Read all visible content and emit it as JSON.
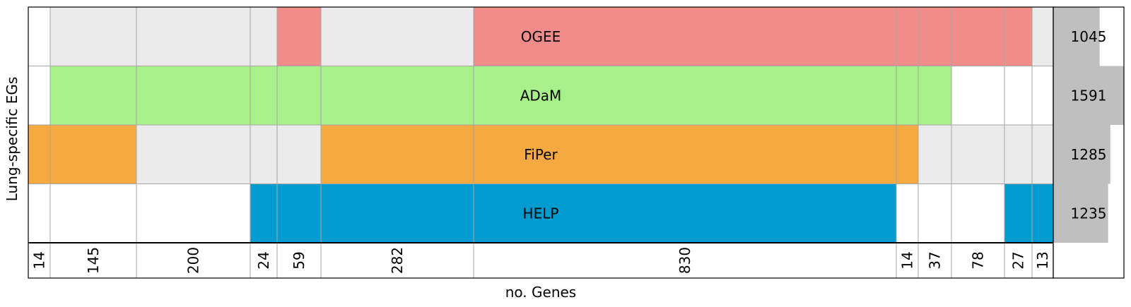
{
  "chart_data": {
    "type": "heatmap",
    "ylabel": "Lung-specific EGs",
    "xlabel": "no. Genes",
    "rows": [
      {
        "name": "OGEE",
        "color": "#f08c89",
        "total": 1045
      },
      {
        "name": "ADaM",
        "color": "#a8f08a",
        "total": 1591
      },
      {
        "name": "FiPer",
        "color": "#f4aa40",
        "total": 1285
      },
      {
        "name": "HELP",
        "color": "#019ccf",
        "total": 1235
      }
    ],
    "columns": [
      {
        "count": 14,
        "members": [
          "ADaM_absent",
          "FiPer"
        ]
      },
      {
        "count": 145,
        "members": [
          "ADaM",
          "FiPer"
        ]
      },
      {
        "count": 200,
        "members": [
          "ADaM"
        ]
      },
      {
        "count": 24,
        "members": [
          "ADaM",
          "HELP"
        ]
      },
      {
        "count": 59,
        "members": [
          "OGEE",
          "ADaM",
          "HELP"
        ]
      },
      {
        "count": 282,
        "members": [
          "ADaM",
          "FiPer",
          "HELP"
        ]
      },
      {
        "count": 830,
        "members": [
          "OGEE",
          "ADaM",
          "FiPer",
          "HELP"
        ]
      },
      {
        "count": 14,
        "members": [
          "OGEE",
          "ADaM",
          "FiPer"
        ]
      },
      {
        "count": 37,
        "members": [
          "OGEE",
          "ADaM"
        ]
      },
      {
        "count": 78,
        "members": [
          "OGEE"
        ]
      },
      {
        "count": 27,
        "members": [
          "OGEE",
          "HELP"
        ]
      },
      {
        "count": 13,
        "members": [
          "HELP"
        ]
      }
    ],
    "cell_states": [
      [
        "empty",
        "grey",
        "grey",
        "grey",
        "fill",
        "grey",
        "fill",
        "fill",
        "fill",
        "fill",
        "fill",
        "grey"
      ],
      [
        "empty",
        "fill",
        "fill",
        "fill",
        "fill",
        "fill",
        "fill",
        "fill",
        "fill",
        "empty",
        "empty",
        "empty"
      ],
      [
        "fill",
        "fill",
        "grey",
        "grey",
        "grey",
        "fill",
        "fill",
        "fill",
        "grey",
        "grey",
        "grey",
        "grey"
      ],
      [
        "empty",
        "empty",
        "empty",
        "fill",
        "fill",
        "fill",
        "fill",
        "empty",
        "empty",
        "empty",
        "fill",
        "fill"
      ]
    ],
    "total_bar_max": 1591,
    "colors": {
      "absent_grey": "#ebebeb",
      "total_bar": "#bfbfbf",
      "grid_line": "#a6a6a6"
    }
  }
}
